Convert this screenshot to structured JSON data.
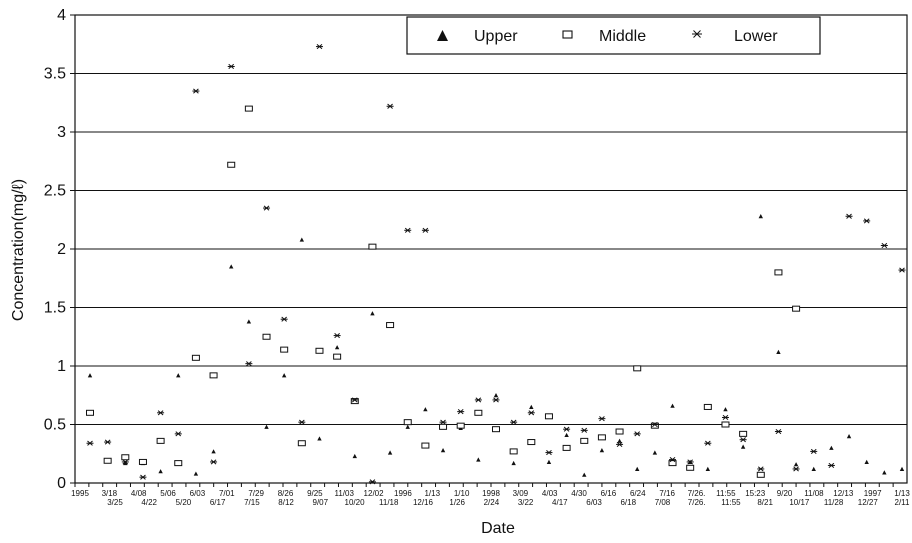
{
  "chart_data": {
    "type": "scatter",
    "xlabel": "Date",
    "ylabel": "Concentration(mg/ℓ)",
    "ylim": [
      0,
      4
    ],
    "yticks": [
      0,
      0.5,
      1,
      1.5,
      2,
      2.5,
      3,
      3.5,
      4
    ],
    "ytick_labels": [
      "0",
      "0.5",
      "1",
      "1.5",
      "2",
      "2.5",
      "3",
      "3.5",
      "4"
    ],
    "grid": "horizontal",
    "legend_position": "top-right",
    "x_tick_labels_top": [
      "1995",
      "3/18",
      "4/08",
      "5/06",
      "6/03",
      "7/01",
      "7/29",
      "8/26",
      "9/25",
      "11/03",
      "12/02",
      "1996",
      "1/13",
      "1/10",
      "1998",
      "3/09",
      "4/03",
      "4/30",
      "6/16",
      "6/24",
      "7/16",
      "7/26.",
      "11:55",
      "15:23",
      "9/20",
      "11/08",
      "12/13",
      "1997",
      "1/13"
    ],
    "x_tick_labels_bottom": [
      "3/25",
      "4/22",
      "5/20",
      "6/17",
      "7/15",
      "8/12",
      "9/07",
      "10/20",
      "11/18",
      "12/16",
      "1/26",
      "2/24",
      "3/22",
      "4/17",
      "6/03",
      "6/18",
      "7/08",
      "7/26.",
      "11:55",
      "8/21",
      "10/17",
      "11/28",
      "12/27",
      "2/11"
    ],
    "series": [
      {
        "name": "Upper",
        "marker": "triangle",
        "x": [
          0,
          4,
          6,
          8,
          10,
          12,
          14,
          16,
          18,
          20,
          22,
          24,
          26,
          28,
          30,
          32,
          34,
          36,
          38,
          40,
          42,
          44,
          46,
          48,
          50,
          52,
          54,
          56,
          58,
          60,
          62,
          64,
          66,
          68,
          70,
          72,
          74,
          76,
          78,
          80,
          82,
          84,
          86,
          88,
          90,
          92
        ],
        "y": [
          0.92,
          0.17,
          0.17,
          0.1,
          0.92,
          0.08,
          0.27,
          1.85,
          1.38,
          0.48,
          0.92,
          2.08,
          0.38,
          1.16,
          0.23,
          1.45,
          0.26,
          0.48,
          0.63,
          0.28,
          0.47,
          0.2,
          0.75,
          0.17,
          0.65,
          0.18,
          0.41,
          0.07,
          0.28,
          0.36,
          0.12,
          0.26,
          0.66,
          0.18,
          0.12,
          0.63,
          0.31,
          2.28,
          1.12,
          0.16,
          0.12,
          0.3,
          0.4,
          0.18,
          0.09,
          0.12
        ]
      },
      {
        "name": "Middle",
        "marker": "square",
        "x": [
          0,
          2,
          4,
          6,
          8,
          10,
          12,
          14,
          16,
          18,
          20,
          22,
          24,
          26,
          28,
          30,
          32,
          34,
          36,
          38,
          40,
          42,
          44,
          46,
          48,
          50,
          52,
          54,
          56,
          58,
          60,
          62,
          64,
          66,
          68,
          70,
          72,
          74,
          76,
          78,
          80
        ],
        "y": [
          0.6,
          0.19,
          0.22,
          0.18,
          0.36,
          0.17,
          1.07,
          0.92,
          2.72,
          3.2,
          1.25,
          1.14,
          0.34,
          1.13,
          1.08,
          0.7,
          2.02,
          1.35,
          0.52,
          0.32,
          0.48,
          0.49,
          0.6,
          0.46,
          0.27,
          0.35,
          0.57,
          0.3,
          0.36,
          0.39,
          0.44,
          0.98,
          0.49,
          0.17,
          0.13,
          0.65,
          0.5,
          0.42,
          0.07,
          1.8,
          1.49
        ]
      },
      {
        "name": "Lower",
        "marker": "asterisk",
        "x": [
          0,
          2,
          4,
          6,
          8,
          10,
          12,
          14,
          16,
          18,
          20,
          22,
          24,
          26,
          28,
          30,
          32,
          34,
          36,
          38,
          40,
          42,
          44,
          46,
          48,
          50,
          52,
          54,
          56,
          58,
          60,
          62,
          64,
          66,
          68,
          70,
          72,
          74,
          76,
          78,
          80,
          82,
          84,
          86,
          88,
          90,
          92
        ],
        "y": [
          0.34,
          0.35,
          0.18,
          0.05,
          0.6,
          0.42,
          3.35,
          0.18,
          3.56,
          1.02,
          2.35,
          1.4,
          0.52,
          3.73,
          1.26,
          0.71,
          0.01,
          3.22,
          2.16,
          2.16,
          0.52,
          0.61,
          0.71,
          0.71,
          0.52,
          0.6,
          0.26,
          0.46,
          0.45,
          0.55,
          0.33,
          0.42,
          0.5,
          0.2,
          0.18,
          0.34,
          0.56,
          0.37,
          0.12,
          0.44,
          0.12,
          0.27,
          0.15,
          2.28,
          2.24,
          2.03,
          1.82
        ]
      }
    ]
  }
}
